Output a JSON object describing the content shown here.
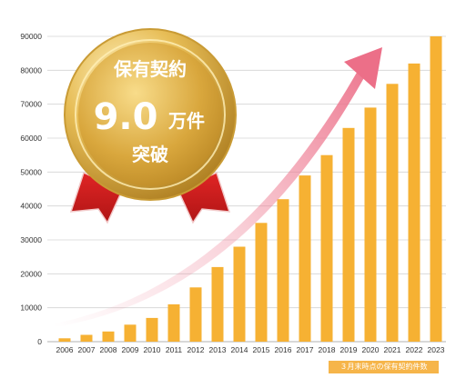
{
  "chart_data": {
    "type": "bar",
    "categories": [
      "2006",
      "2007",
      "2008",
      "2009",
      "2010",
      "2011",
      "2012",
      "2013",
      "2014",
      "2015",
      "2016",
      "2017",
      "2018",
      "2019",
      "2020",
      "2021",
      "2022",
      "2023"
    ],
    "values": [
      1000,
      2000,
      3000,
      5000,
      7000,
      11000,
      16000,
      22000,
      28000,
      35000,
      42000,
      49000,
      55000,
      63000,
      69000,
      76000,
      82000,
      90000
    ],
    "yticks": [
      "0",
      "10000",
      "20000",
      "30000",
      "40000",
      "50000",
      "60000",
      "70000",
      "80000",
      "90000"
    ],
    "ylim": [
      0,
      90000
    ],
    "grid": true,
    "bar_color": "#f6b133",
    "trend_arrow_color": "#ee7f95"
  },
  "medal": {
    "line1": "保有契約",
    "big_number": "9.0",
    "unit": "万件",
    "line3": "突破"
  },
  "note": "３月末時点の保有契約件数"
}
